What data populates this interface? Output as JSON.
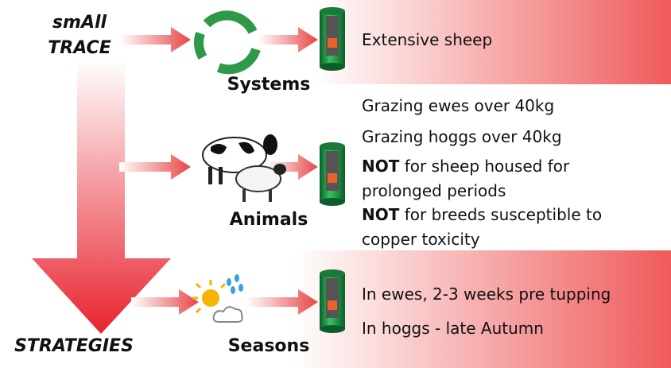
{
  "brand": {
    "line1": "smAll",
    "line2": "TRACE",
    "bottom": "STRATEGIES"
  },
  "sections": [
    {
      "label": "Systems",
      "items": [
        {
          "text": "Extensive sheep"
        }
      ]
    },
    {
      "label": "Animals",
      "items": [
        {
          "text": "Grazing ewes over 40kg"
        },
        {
          "text": "Grazing hoggs over 40kg"
        },
        {
          "bold": "NOT",
          "text": "for sheep housed for prolonged periods"
        },
        {
          "bold": "NOT",
          "text": "for breeds susceptible to copper toxicity"
        }
      ]
    },
    {
      "label": "Seasons",
      "items": [
        {
          "text": "In ewes, 2-3 weeks pre tupping"
        },
        {
          "text": "In hoggs - late Autumn"
        }
      ]
    }
  ]
}
